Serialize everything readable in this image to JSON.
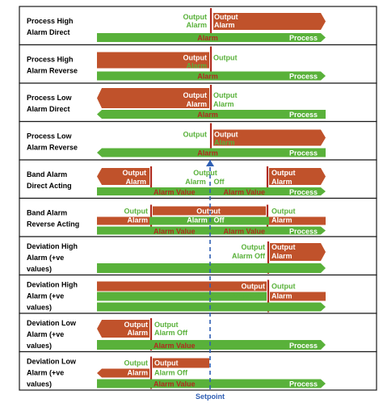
{
  "colors": {
    "orange": "#c0522b",
    "green": "#59b13a",
    "dark_red": "#b02a1e",
    "blue": "#2f5fb4",
    "border": "#1a1a1a"
  },
  "texts": {
    "output": "Output",
    "alarm": "Alarm",
    "process": "Process",
    "alarm_value": "Alarm Value",
    "off": "Off",
    "alarm_off": "Alarm Off",
    "setpoint": "Setpoint"
  },
  "rows": [
    {
      "label1": "Process High",
      "label2": "Alarm Direct",
      "label3": ""
    },
    {
      "label1": "Process High",
      "label2": "Alarm Reverse",
      "label3": ""
    },
    {
      "label1": "Process Low",
      "label2": "Alarm Direct",
      "label3": ""
    },
    {
      "label1": "Process Low",
      "label2": "Alarm Reverse",
      "label3": ""
    },
    {
      "label1": "Band Alarm",
      "label2": "Direct Acting",
      "label3": ""
    },
    {
      "label1": "Band Alarm",
      "label2": "Reverse Acting",
      "label3": ""
    },
    {
      "label1": "Deviation High",
      "label2": "Alarm (+ve",
      "label3": "values)"
    },
    {
      "label1": "Deviation High",
      "label2": "Alarm (+ve",
      "label3": "values)"
    },
    {
      "label1": "Deviation Low",
      "label2": "Alarm (+ve",
      "label3": "values)"
    },
    {
      "label1": "Deviation Low",
      "label2": "Alarm (+ve",
      "label3": "values)"
    }
  ]
}
